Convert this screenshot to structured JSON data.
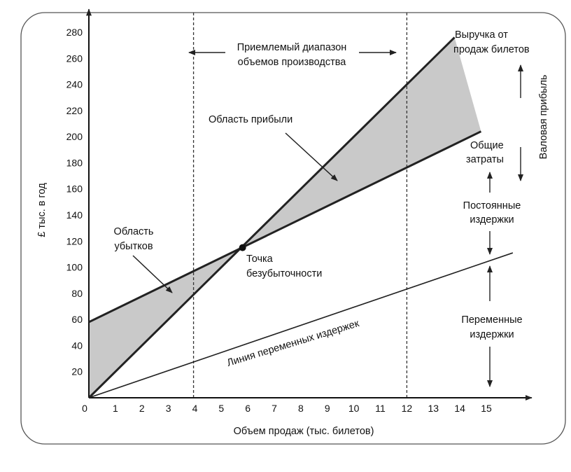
{
  "chart_data": {
    "type": "line",
    "xlabel": "Объем продаж (тыс. билетов)",
    "ylabel": "£ тыс. в год",
    "xlim": [
      0,
      16.5
    ],
    "ylim": [
      0,
      290
    ],
    "x_ticks": [
      0,
      1,
      2,
      3,
      4,
      5,
      6,
      7,
      8,
      9,
      10,
      11,
      12,
      13,
      14,
      15
    ],
    "y_ticks": [
      20,
      40,
      60,
      80,
      100,
      120,
      140,
      160,
      180,
      200,
      220,
      240,
      260,
      280
    ],
    "grid": false,
    "series": [
      {
        "name": "Выручка от продаж билетов",
        "x": [
          0,
          13.8
        ],
        "y": [
          0,
          276
        ]
      },
      {
        "name": "Общие затраты",
        "x": [
          0,
          14.8
        ],
        "y": [
          58,
          204
        ]
      },
      {
        "name": "Линия переменных издержек",
        "x": [
          0,
          16.0
        ],
        "y": [
          0,
          111
        ]
      }
    ],
    "vlines": [
      3.95,
      12.0
    ],
    "breakeven": {
      "x": 5.8,
      "y": 115
    }
  },
  "labels": {
    "revenue_line1": "Выручка от",
    "revenue_line2": "продаж билетов",
    "total_cost_line1": "Общие",
    "total_cost_line2": "затраты",
    "range_line1": "Приемлемый диапазон",
    "range_line2": "объемов производства",
    "profit_area": "Область прибыли",
    "loss_line1": "Область",
    "loss_line2": "убытков",
    "breakeven_line1": "Точка",
    "breakeven_line2": "безубыточности",
    "variable_line": "Линия переменных издержек",
    "gross_profit": "Валовая прибыль",
    "fixed_line1": "Постоянные",
    "fixed_line2": "издержки",
    "variable_costs_line1": "Переменные",
    "variable_costs_line2": "издержки"
  }
}
